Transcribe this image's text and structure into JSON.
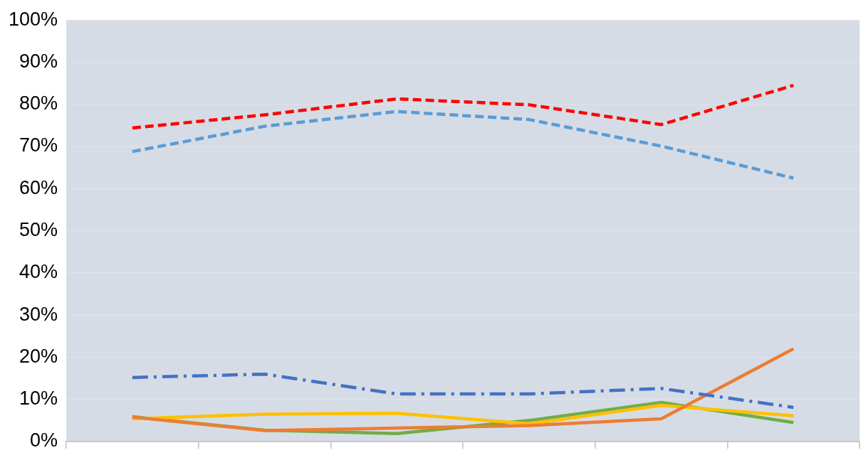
{
  "chart_data": {
    "type": "line",
    "categories": [
      null,
      null,
      null,
      null,
      null,
      null
    ],
    "series": [
      {
        "color": "#ff0000",
        "line_style": "dashed",
        "values": [
          74.4,
          77.5,
          81.3,
          79.9,
          75.2,
          84.5
        ]
      },
      {
        "color": "#5b9bd5",
        "line_style": "dashed",
        "values": [
          68.8,
          74.8,
          78.3,
          76.4,
          70.1,
          62.5
        ]
      },
      {
        "color": "#4472c4",
        "line_style": "dashdot",
        "values": [
          15.2,
          16,
          11.3,
          11.3,
          12.6,
          8.1
        ]
      },
      {
        "color": "#ed7d31",
        "line_style": "solid",
        "values": [
          5.8,
          2.6,
          3.2,
          3.8,
          5.4,
          22
        ]
      },
      {
        "color": "#ffc000",
        "line_style": "solid",
        "values": [
          5.4,
          6.5,
          6.7,
          4.2,
          8.6,
          6.1
        ]
      },
      {
        "color": "#70ad47",
        "line_style": "solid",
        "values": [
          5.9,
          2.7,
          1.9,
          5,
          9.3,
          4.5
        ]
      }
    ],
    "ylim": [
      0,
      100
    ],
    "yticks": [
      {
        "value": 0,
        "label": "0%"
      },
      {
        "value": 10,
        "label": "10%"
      },
      {
        "value": 20,
        "label": "20%"
      },
      {
        "value": 30,
        "label": "30%"
      },
      {
        "value": 40,
        "label": "40%"
      },
      {
        "value": 50,
        "label": "50%"
      },
      {
        "value": 60,
        "label": "60%"
      },
      {
        "value": 70,
        "label": "70%"
      },
      {
        "value": 80,
        "label": "80%"
      },
      {
        "value": 90,
        "label": "90%"
      },
      {
        "value": 100,
        "label": "100%"
      }
    ],
    "grid": "y",
    "legend": false,
    "marker": "none"
  }
}
